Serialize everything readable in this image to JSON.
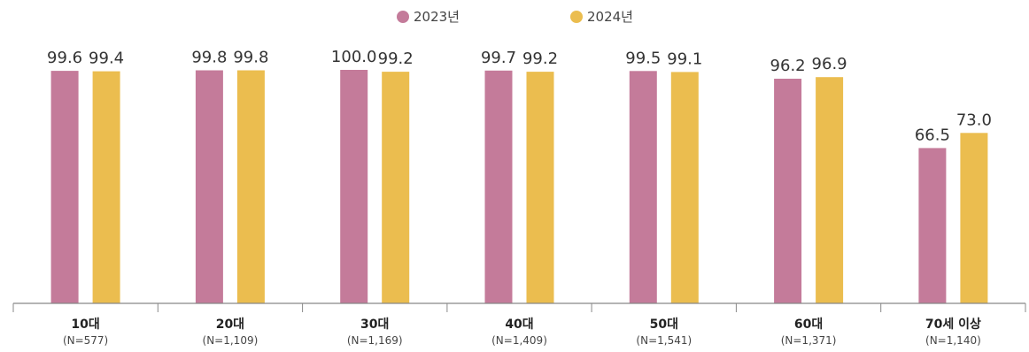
{
  "chart_data": {
    "type": "bar",
    "categories": [
      "10대",
      "20대",
      "30대",
      "40대",
      "50대",
      "60대",
      "70세 이상"
    ],
    "category_notes": [
      "(N=577)",
      "(N=1,109)",
      "(N=1,169)",
      "(N=1,409)",
      "(N=1,541)",
      "(N=1,371)",
      "(N=1,140)"
    ],
    "series": [
      {
        "name": "2023년",
        "color": "#c47b9a",
        "values": [
          99.6,
          99.8,
          100.0,
          99.7,
          99.5,
          96.2,
          66.5
        ],
        "labels": [
          "99.6",
          "99.8",
          "100.0",
          "99.7",
          "99.5",
          "96.2",
          "66.5"
        ]
      },
      {
        "name": "2024년",
        "color": "#ebbd4f",
        "values": [
          99.4,
          99.8,
          99.2,
          99.2,
          99.1,
          96.9,
          73.0
        ],
        "labels": [
          "99.4",
          "99.8",
          "99.2",
          "99.2",
          "99.1",
          "96.9",
          "73.0"
        ]
      }
    ],
    "ylim": [
      0,
      100
    ],
    "grid": false,
    "legend_position": "top-center",
    "axis_color": "#888888"
  }
}
